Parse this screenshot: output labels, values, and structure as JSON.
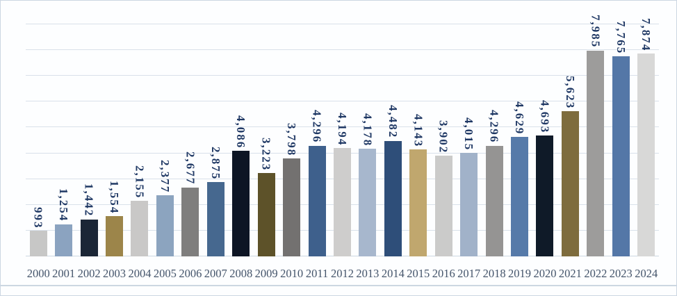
{
  "chart_data": {
    "type": "bar",
    "title": "",
    "xlabel": "",
    "ylabel": "",
    "categories": [
      "2000",
      "2001",
      "2002",
      "2003",
      "2004",
      "2005",
      "2006",
      "2007",
      "2008",
      "2009",
      "2010",
      "2011",
      "2012",
      "2013",
      "2014",
      "2015",
      "2016",
      "2017",
      "2018",
      "2019",
      "2020",
      "2021",
      "2022",
      "2023",
      "2024"
    ],
    "values": [
      993,
      1254,
      1442,
      1554,
      2155,
      2377,
      2677,
      2875,
      4086,
      3223,
      3798,
      4296,
      4194,
      4178,
      4482,
      4143,
      3902,
      4015,
      4296,
      4629,
      4693,
      5623,
      7985,
      7765,
      7874
    ],
    "labels": [
      "993",
      "1,254",
      "1,442",
      "1,554",
      "2,155",
      "2,377",
      "2,677",
      "2,875",
      "4,086",
      "3,223",
      "3,798",
      "4,296",
      "4,194",
      "4,178",
      "4,482",
      "4,143",
      "3,902",
      "4,015",
      "4,296",
      "4,629",
      "4,693",
      "5,623",
      "7,985",
      "7,765",
      "7,874"
    ],
    "bar_colors": [
      "#c7c7c6",
      "#8ba3c0",
      "#1b2636",
      "#9c854a",
      "#c9c8c7",
      "#8ca4bf",
      "#7f7e7d",
      "#46688f",
      "#0d1524",
      "#5d5229",
      "#737170",
      "#3e608c",
      "#cecdcc",
      "#a7b7cd",
      "#2e4e79",
      "#c0a76e",
      "#cbcbca",
      "#a1b2c9",
      "#959493",
      "#567aa9",
      "#0f1a28",
      "#7e6c3d",
      "#9d9c9b",
      "#5477a7",
      "#d8d8d7"
    ],
    "ylim": [
      0,
      9000
    ],
    "gridline_interval": 1000,
    "grid": true,
    "legend": "none",
    "y_tick_labels_visible": false,
    "data_label_rotation": "vertical"
  },
  "styles": {
    "value_label_color": "#1f3864",
    "axis_label_color": "#44546a",
    "gridline_color": "#d9e1ea",
    "axis_line_color": "#ccd7e2",
    "border_color": "#ccd6e2",
    "background": "#fdfeff"
  }
}
